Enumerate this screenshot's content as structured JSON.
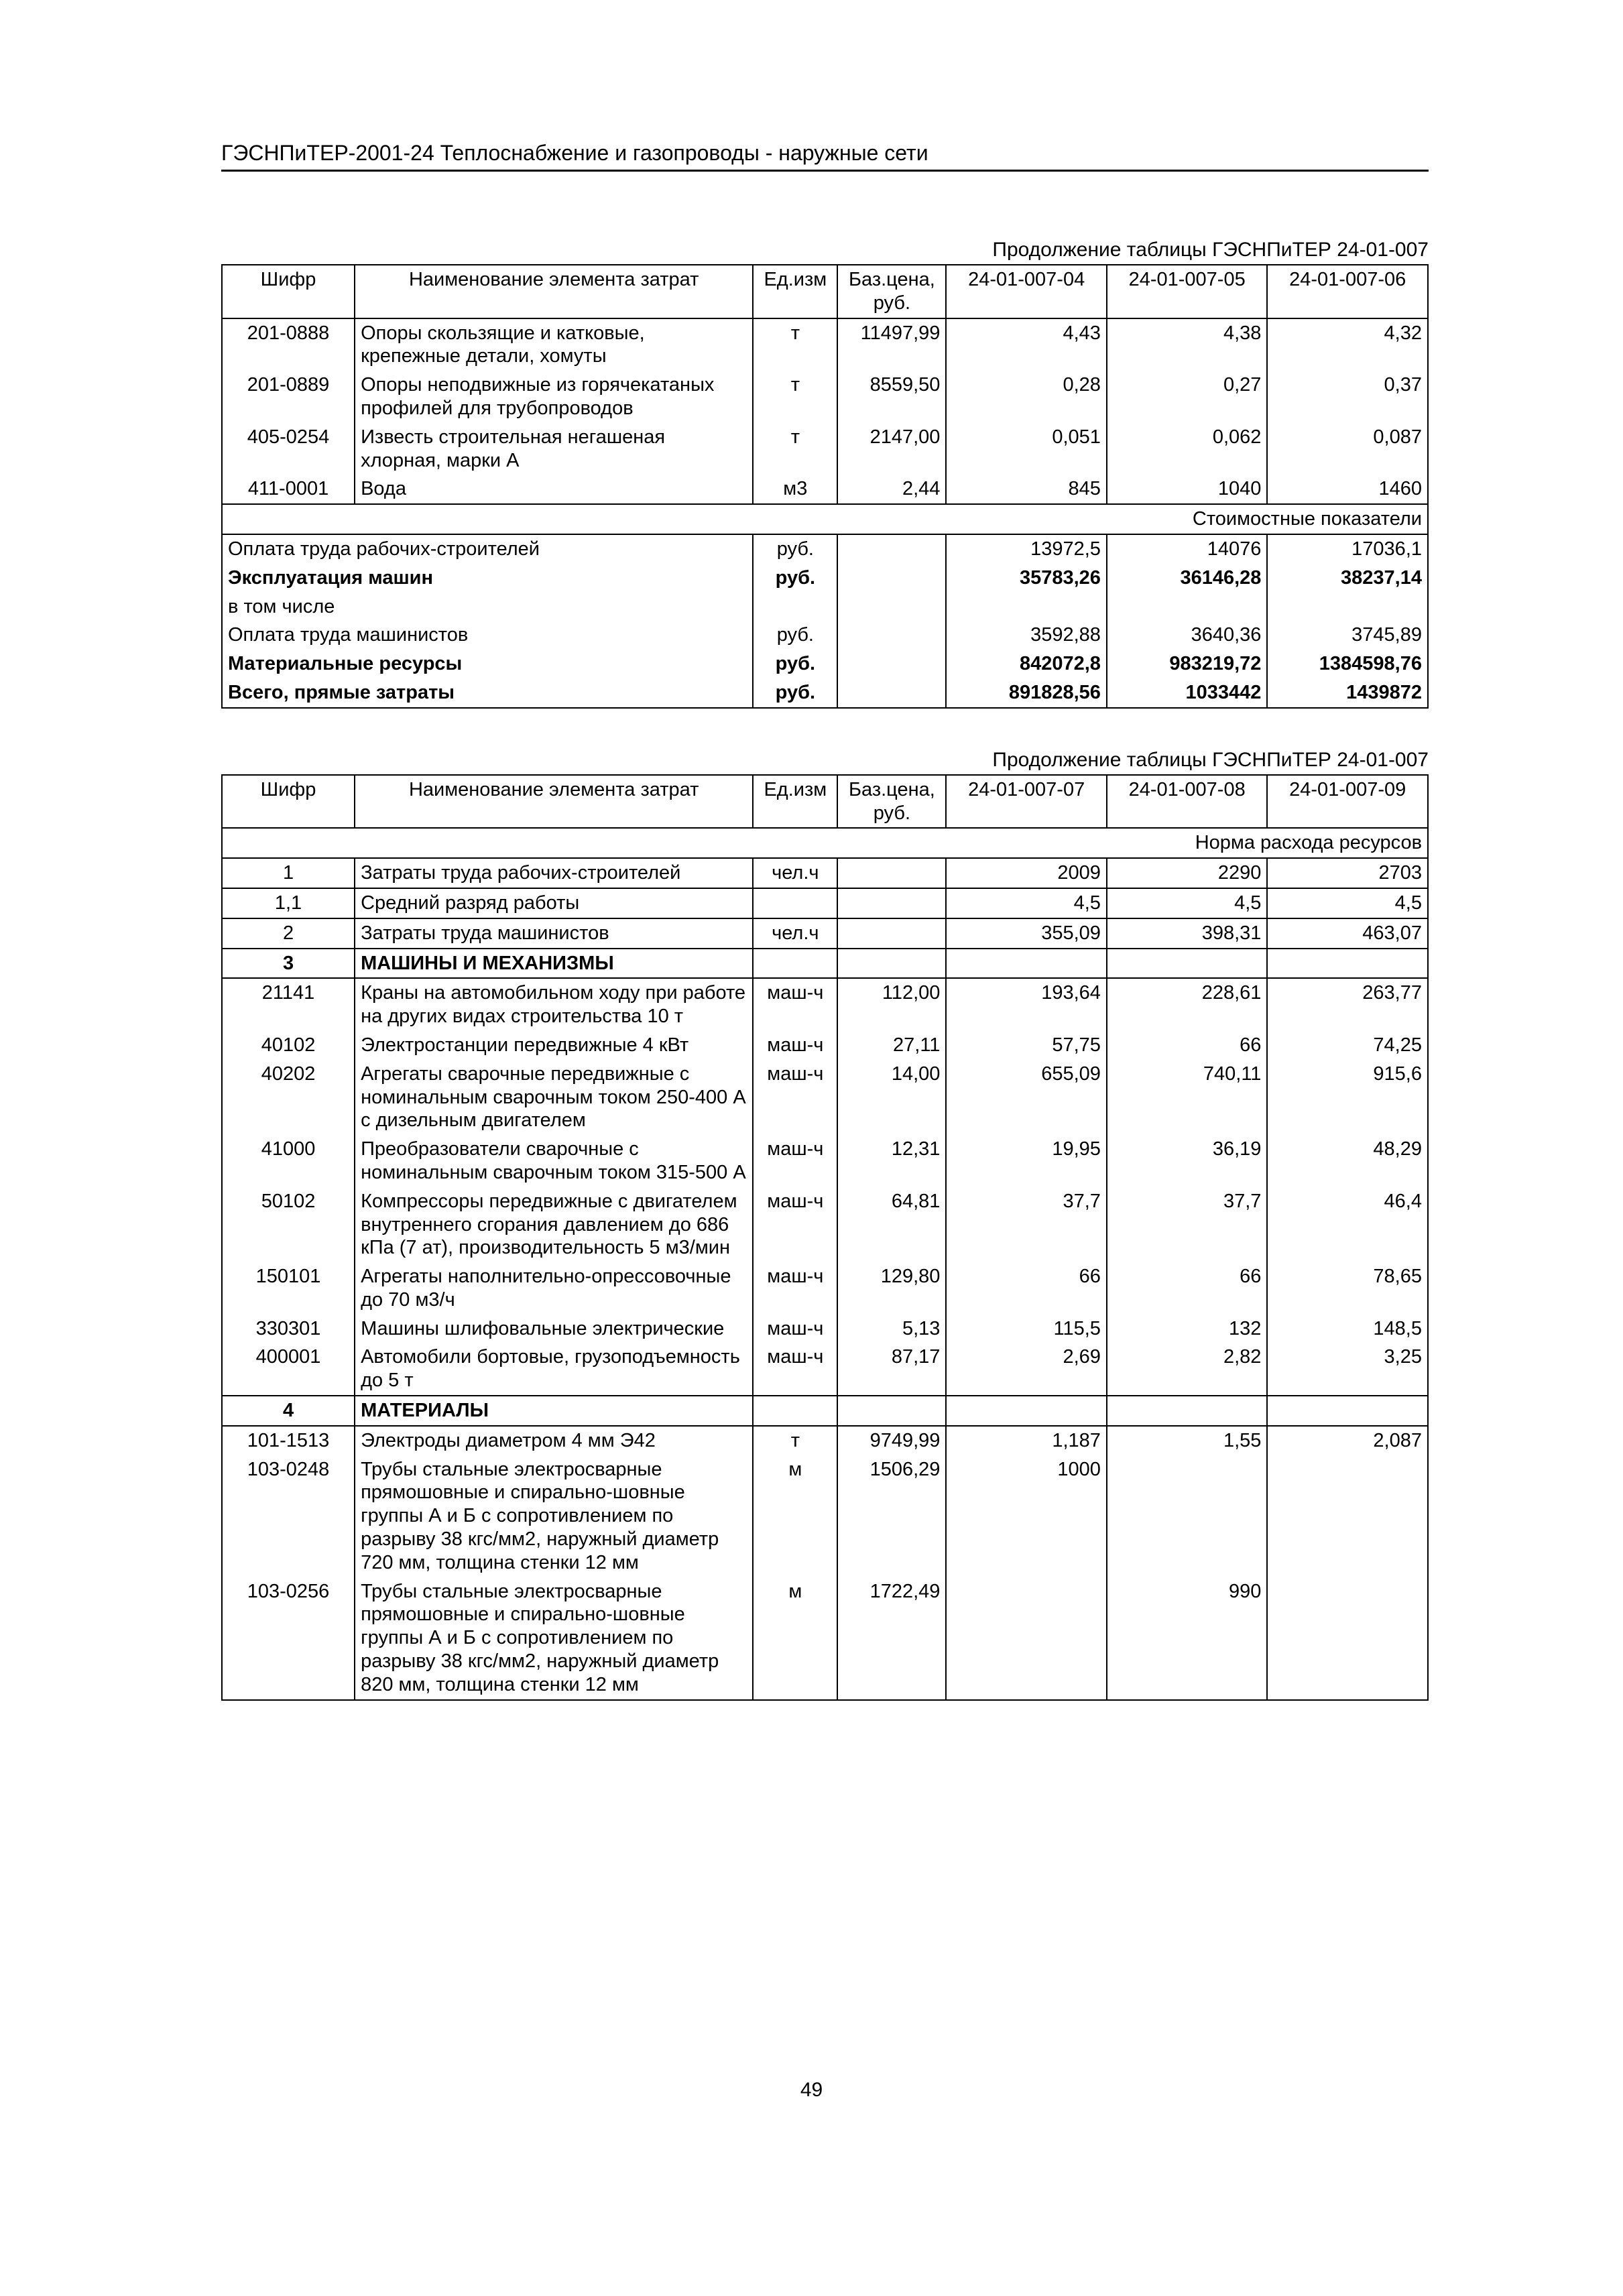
{
  "doc_header": "ГЭСНПиТЕР-2001-24 Теплоснабжение и газопроводы - наружные сети",
  "page_no": "49",
  "t1": {
    "caption": "Продолжение таблицы ГЭСНПиТЕР 24-01-007",
    "head": {
      "code": "Шифр",
      "name": "Наименование элемента затрат",
      "unit": "Ед.изм",
      "price": "Баз.цена, руб.",
      "c1": "24-01-007-04",
      "c2": "24-01-007-05",
      "c3": "24-01-007-06"
    },
    "rows": [
      {
        "code": "201-0888",
        "name": "Опоры скользящие и катковые, крепежные детали, хомуты",
        "unit": "т",
        "price": "11497,99",
        "v1": "4,43",
        "v2": "4,38",
        "v3": "4,32"
      },
      {
        "code": "201-0889",
        "name": "Опоры неподвижные из горячекатаных профилей для трубопроводов",
        "unit": "т",
        "price": "8559,50",
        "v1": "0,28",
        "v2": "0,27",
        "v3": "0,37"
      },
      {
        "code": "405-0254",
        "name": "Известь строительная негашеная хлорная, марки А",
        "unit": "т",
        "price": "2147,00",
        "v1": "0,051",
        "v2": "0,062",
        "v3": "0,087"
      },
      {
        "code": "411-0001",
        "name": "Вода",
        "unit": "м3",
        "price": "2,44",
        "v1": "845",
        "v2": "1040",
        "v3": "1460"
      }
    ],
    "sub": "Стоимостные показатели",
    "sum": [
      {
        "name": "Оплата труда рабочих-строителей",
        "unit": "руб.",
        "v1": "13972,5",
        "v2": "14076",
        "v3": "17036,1",
        "bold": false
      },
      {
        "name": "Эксплуатация машин",
        "unit": "руб.",
        "v1": "35783,26",
        "v2": "36146,28",
        "v3": "38237,14",
        "bold": true
      },
      {
        "name": "в том числе",
        "unit": "",
        "v1": "",
        "v2": "",
        "v3": "",
        "bold": false
      },
      {
        "name": "Оплата труда машинистов",
        "unit": "руб.",
        "v1": "3592,88",
        "v2": "3640,36",
        "v3": "3745,89",
        "bold": false
      },
      {
        "name": "Материальные ресурсы",
        "unit": "руб.",
        "v1": "842072,8",
        "v2": "983219,72",
        "v3": "1384598,76",
        "bold": true
      },
      {
        "name": "Всего, прямые затраты",
        "unit": "руб.",
        "v1": "891828,56",
        "v2": "1033442",
        "v3": "1439872",
        "bold": true
      }
    ]
  },
  "t2": {
    "caption": "Продолжение таблицы ГЭСНПиТЕР 24-01-007",
    "head": {
      "code": "Шифр",
      "name": "Наименование элемента затрат",
      "unit": "Ед.изм",
      "price": "Баз.цена, руб.",
      "c1": "24-01-007-07",
      "c2": "24-01-007-08",
      "c3": "24-01-007-09"
    },
    "sub": "Норма расхода ресурсов",
    "rows": [
      {
        "code": "1",
        "name": "Затраты труда рабочих-строителей",
        "unit": "чел.ч",
        "price": "",
        "v1": "2009",
        "v2": "2290",
        "v3": "2703",
        "cc": true,
        "line": true
      },
      {
        "code": "1,1",
        "name": "Средний разряд работы",
        "unit": "",
        "price": "",
        "v1": "4,5",
        "v2": "4,5",
        "v3": "4,5",
        "cc": true,
        "line": true
      },
      {
        "code": "2",
        "name": "Затраты труда машинистов",
        "unit": "чел.ч",
        "price": "",
        "v1": "355,09",
        "v2": "398,31",
        "v3": "463,07",
        "cc": true,
        "line": true
      },
      {
        "code": "3",
        "name": "МАШИНЫ И МЕХАНИЗМЫ",
        "unit": "",
        "price": "",
        "v1": "",
        "v2": "",
        "v3": "",
        "cc": true,
        "bold": true,
        "line": true
      },
      {
        "code": "21141",
        "name": "Краны на автомобильном ходу при работе на других видах строительства 10 т",
        "unit": "маш-ч",
        "price": "112,00",
        "v1": "193,64",
        "v2": "228,61",
        "v3": "263,77",
        "cc": true
      },
      {
        "code": "40102",
        "name": "Электростанции передвижные 4 кВт",
        "unit": "маш-ч",
        "price": "27,11",
        "v1": "57,75",
        "v2": "66",
        "v3": "74,25",
        "cc": true
      },
      {
        "code": "40202",
        "name": "Агрегаты сварочные передвижные с номинальным сварочным током 250-400 А с дизельным двигателем",
        "unit": "маш-ч",
        "price": "14,00",
        "v1": "655,09",
        "v2": "740,11",
        "v3": "915,6",
        "cc": true
      },
      {
        "code": "41000",
        "name": "Преобразователи сварочные с номинальным сварочным током 315-500 А",
        "unit": "маш-ч",
        "price": "12,31",
        "v1": "19,95",
        "v2": "36,19",
        "v3": "48,29",
        "cc": true
      },
      {
        "code": "50102",
        "name": "Компрессоры передвижные с двигателем внутреннего сгорания давлением до 686 кПа (7 ат), производительность 5 м3/мин",
        "unit": "маш-ч",
        "price": "64,81",
        "v1": "37,7",
        "v2": "37,7",
        "v3": "46,4",
        "cc": true
      },
      {
        "code": "150101",
        "name": "Агрегаты наполнительно-опрессовочные до 70 м3/ч",
        "unit": "маш-ч",
        "price": "129,80",
        "v1": "66",
        "v2": "66",
        "v3": "78,65",
        "cc": true
      },
      {
        "code": "330301",
        "name": "Машины шлифовальные электрические",
        "unit": "маш-ч",
        "price": "5,13",
        "v1": "115,5",
        "v2": "132",
        "v3": "148,5",
        "cc": true
      },
      {
        "code": "400001",
        "name": "Автомобили бортовые, грузоподъемность до 5 т",
        "unit": "маш-ч",
        "price": "87,17",
        "v1": "2,69",
        "v2": "2,82",
        "v3": "3,25",
        "cc": true,
        "lineb": true
      },
      {
        "code": "4",
        "name": "МАТЕРИАЛЫ",
        "unit": "",
        "price": "",
        "v1": "",
        "v2": "",
        "v3": "",
        "cc": true,
        "bold": true,
        "line": true
      },
      {
        "code": "101-1513",
        "name": "Электроды диаметром 4 мм Э42",
        "unit": "т",
        "price": "9749,99",
        "v1": "1,187",
        "v2": "1,55",
        "v3": "2,087",
        "cc": true
      },
      {
        "code": "103-0248",
        "name": "Трубы стальные электросварные прямошовные и спирально-шовные группы А и Б с сопротивлением по разрыву 38 кгс/мм2, наружный диаметр 720 мм, толщина стенки 12 мм",
        "unit": "м",
        "price": "1506,29",
        "v1": "1000",
        "v2": "",
        "v3": "",
        "cc": true
      },
      {
        "code": "103-0256",
        "name": "Трубы стальные электросварные прямошовные и спирально-шовные группы А и Б с сопротивлением по разрыву 38 кгс/мм2, наружный диаметр 820 мм, толщина стенки 12 мм",
        "unit": "м",
        "price": "1722,49",
        "v1": "",
        "v2": "990",
        "v3": "",
        "cc": true,
        "lineb": true
      }
    ]
  }
}
